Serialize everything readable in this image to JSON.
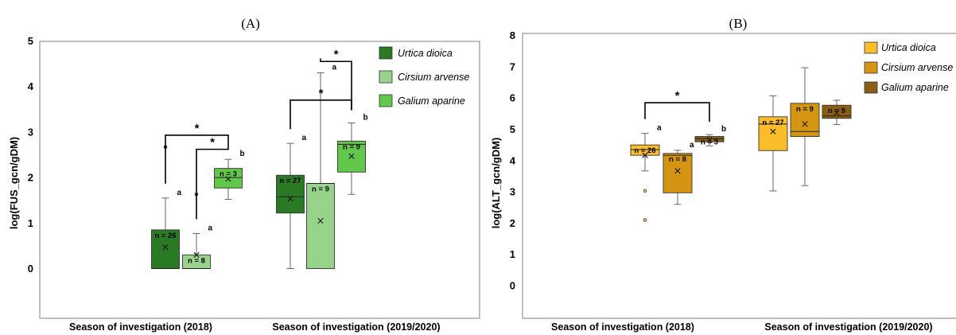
{
  "chart_data": [
    {
      "type": "box",
      "title": "(A)",
      "ylabel": "log(FUS_gcn/gDM)",
      "ylim": [
        -1,
        5
      ],
      "yticks": [
        "0",
        "1",
        "2",
        "3",
        "4",
        "5"
      ],
      "grid": false,
      "legend_position": "top-right",
      "categories": [
        "Season of investigation (2018)",
        "Season of investigation (2019/2020)"
      ],
      "series": [
        {
          "name": "Urtica dioica",
          "color": "#2a7a25"
        },
        {
          "name": "Cirsium arvense",
          "color": "#98d38c"
        },
        {
          "name": "Galium aparine",
          "color": "#62c84c"
        }
      ],
      "boxes": [
        {
          "category": 0,
          "series": 0,
          "min": 0,
          "q1": 0,
          "median": 0,
          "q3": 0.85,
          "max": 1.55,
          "mean": 0.47,
          "outliers": [
            2.67
          ],
          "n_label": "n = 26",
          "letter": "a"
        },
        {
          "category": 0,
          "series": 1,
          "min": 0,
          "q1": 0,
          "median": 0,
          "q3": 0.3,
          "max": 0.77,
          "mean": 0.3,
          "outliers": [
            1.63
          ],
          "n_label": "n = 8",
          "letter": "a"
        },
        {
          "category": 0,
          "series": 2,
          "min": 1.52,
          "q1": 1.77,
          "median": 2.0,
          "q3": 2.2,
          "max": 2.4,
          "mean": 1.97,
          "outliers": [],
          "n_label": "n = 3",
          "letter": "b"
        },
        {
          "category": 1,
          "series": 0,
          "min": 0,
          "q1": 1.22,
          "median": 1.58,
          "q3": 2.05,
          "max": 2.75,
          "mean": 1.53,
          "outliers": [],
          "n_label": "n = 27",
          "letter": "a"
        },
        {
          "category": 1,
          "series": 1,
          "min": 0,
          "q1": 0,
          "median": 1.87,
          "q3": 1.87,
          "max": 4.3,
          "mean": 1.05,
          "outliers": [],
          "n_label": "n = 9",
          "letter": "a"
        },
        {
          "category": 1,
          "series": 2,
          "min": 1.63,
          "q1": 2.12,
          "median": 2.73,
          "q3": 2.8,
          "max": 3.2,
          "mean": 2.47,
          "outliers": [],
          "n_label": "n = 9",
          "letter": "b"
        }
      ],
      "annotations": [
        {
          "text": "*",
          "between": [
            [
              0,
              0
            ],
            [
              0,
              2
            ]
          ],
          "level": 2.93
        },
        {
          "text": "*",
          "between": [
            [
              0,
              1
            ],
            [
              0,
              2
            ]
          ],
          "level": 2.62
        },
        {
          "text": "*",
          "between": [
            [
              1,
              0
            ],
            [
              1,
              2
            ]
          ],
          "level": 3.7
        },
        {
          "text": "*",
          "between": [
            [
              1,
              1
            ],
            [
              1,
              2
            ]
          ],
          "level": 4.55
        }
      ]
    },
    {
      "type": "box",
      "title": "(B)",
      "ylabel": "log(ALT_gcn/gDM)",
      "ylim": [
        -1.5,
        8
      ],
      "yticks": [
        "0",
        "1",
        "2",
        "3",
        "4",
        "5",
        "6",
        "7",
        "8"
      ],
      "grid": false,
      "legend_position": "top-right",
      "categories": [
        "Season of investigation (2018)",
        "Season of investigation (2019/2020)"
      ],
      "series": [
        {
          "name": "Urtica dioica",
          "color": "#fbbe2a"
        },
        {
          "name": "Cirsium arvense",
          "color": "#d49612"
        },
        {
          "name": "Galium aparine",
          "color": "#8c5e14"
        }
      ],
      "boxes": [
        {
          "category": 0,
          "series": 0,
          "min": 3.67,
          "q1": 4.17,
          "median": 4.35,
          "q3": 4.5,
          "max": 4.87,
          "mean": 4.17,
          "outliers": [
            3.03,
            2.1
          ],
          "n_label": "n = 26",
          "letter": "a"
        },
        {
          "category": 0,
          "series": 1,
          "min": 2.6,
          "q1": 2.97,
          "median": 4.17,
          "q3": 4.23,
          "max": 4.33,
          "mean": 3.67,
          "outliers": [],
          "n_label": "n = 8",
          "letter": "a"
        },
        {
          "category": 0,
          "series": 2,
          "min": 4.47,
          "q1": 4.6,
          "median": 4.7,
          "q3": 4.77,
          "max": 4.83,
          "mean": 4.67,
          "outliers": [],
          "n_label": "n = 3",
          "letter": "b"
        },
        {
          "category": 1,
          "series": 0,
          "min": 3.03,
          "q1": 4.32,
          "median": 5.17,
          "q3": 5.4,
          "max": 6.07,
          "mean": 4.93,
          "outliers": [],
          "n_label": "n = 27",
          "letter": ""
        },
        {
          "category": 1,
          "series": 1,
          "min": 3.2,
          "q1": 4.77,
          "median": 4.93,
          "q3": 5.83,
          "max": 6.97,
          "mean": 5.17,
          "outliers": [],
          "n_label": "n = 9",
          "letter": ""
        },
        {
          "category": 1,
          "series": 2,
          "min": 5.15,
          "q1": 5.35,
          "median": 5.43,
          "q3": 5.77,
          "max": 5.93,
          "mean": 5.53,
          "outliers": [],
          "n_label": "n = 9",
          "letter": ""
        }
      ],
      "annotations": [
        {
          "text": "*",
          "between": [
            [
              0,
              0
            ],
            [
              0,
              2
            ]
          ],
          "level": 5.85
        }
      ]
    }
  ]
}
